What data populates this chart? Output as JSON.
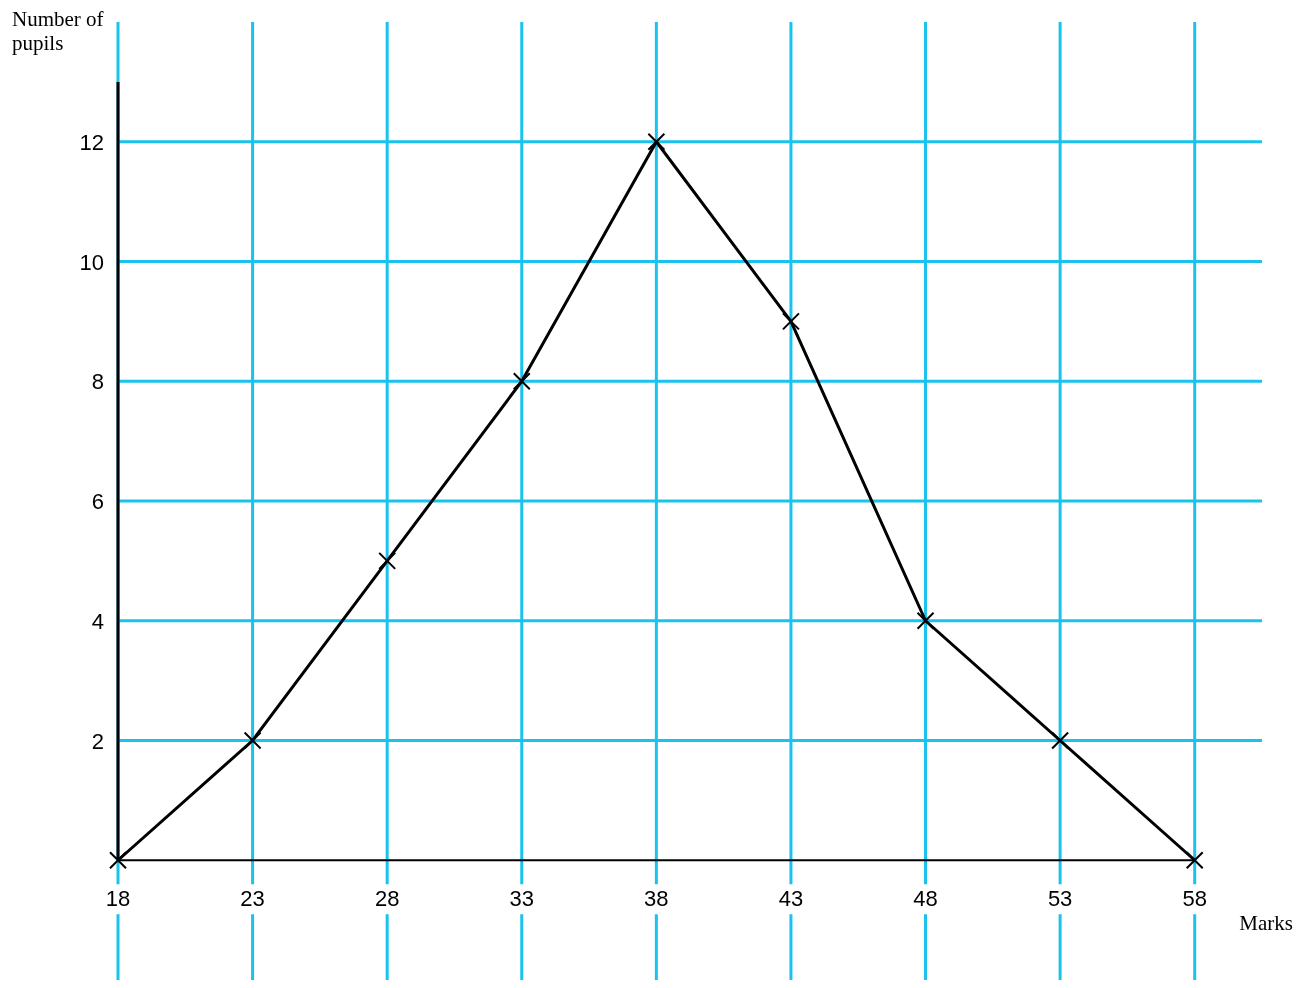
{
  "chart_data": {
    "type": "line",
    "xlabel": "Marks",
    "ylabel": "Number of pupils",
    "x": [
      18,
      23,
      28,
      33,
      38,
      43,
      48,
      53,
      58
    ],
    "series": [
      {
        "color": "#000000",
        "values": [
          0,
          2,
          5,
          8,
          12,
          9,
          4,
          2,
          0
        ]
      }
    ],
    "xlim": [
      18,
      60.5
    ],
    "ylim": [
      -2,
      14
    ],
    "xticks": [
      18,
      23,
      28,
      33,
      38,
      43,
      48,
      53,
      58
    ],
    "yticks": [
      2,
      4,
      6,
      8,
      10,
      12
    ],
    "grid": true,
    "marker": "cross",
    "line_style": "solid"
  }
}
